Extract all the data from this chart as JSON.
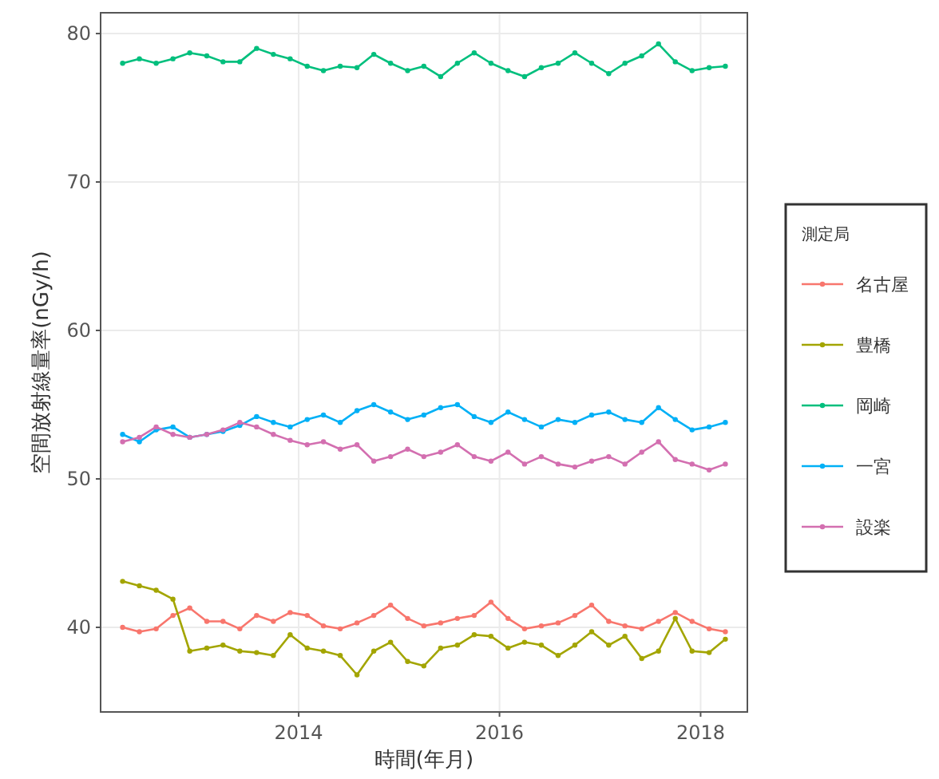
{
  "chart_data": {
    "type": "line",
    "xlabel": "時間(年月)",
    "ylabel": "空間放射線量率(nGy/h)",
    "legend_title": "測定局",
    "x": [
      "2012-04",
      "2012-06",
      "2012-08",
      "2012-10",
      "2012-12",
      "2013-02",
      "2013-04",
      "2013-06",
      "2013-08",
      "2013-10",
      "2013-12",
      "2014-02",
      "2014-04",
      "2014-06",
      "2014-08",
      "2014-10",
      "2014-12",
      "2015-02",
      "2015-04",
      "2015-06",
      "2015-08",
      "2015-10",
      "2015-12",
      "2016-02",
      "2016-04",
      "2016-06",
      "2016-08",
      "2016-10",
      "2016-12",
      "2017-02",
      "2017-04",
      "2017-06",
      "2017-08",
      "2017-10",
      "2017-12",
      "2018-02",
      "2018-04"
    ],
    "series": [
      {
        "name": "名古屋",
        "color": "#f8766d",
        "values": [
          40.0,
          39.7,
          39.9,
          40.8,
          41.3,
          40.4,
          40.4,
          39.9,
          40.8,
          40.4,
          41.0,
          40.8,
          40.1,
          39.9,
          40.3,
          40.8,
          41.5,
          40.6,
          40.1,
          40.3,
          40.6,
          40.8,
          41.7,
          40.6,
          39.9,
          40.1,
          40.3,
          40.8,
          41.5,
          40.4,
          40.1,
          39.9,
          40.4,
          41.0,
          40.4,
          39.9,
          39.7
        ]
      },
      {
        "name": "豊橋",
        "color": "#a3a500",
        "values": [
          43.1,
          42.8,
          42.5,
          41.9,
          38.4,
          38.6,
          38.8,
          38.4,
          38.3,
          38.1,
          39.5,
          38.6,
          38.4,
          38.1,
          36.8,
          38.4,
          39.0,
          37.7,
          37.4,
          38.6,
          38.8,
          39.5,
          39.4,
          38.6,
          39.0,
          38.8,
          38.1,
          38.8,
          39.7,
          38.8,
          39.4,
          37.9,
          38.4,
          40.6,
          38.4,
          38.3,
          39.2
        ]
      },
      {
        "name": "岡崎",
        "color": "#00bf7d",
        "values": [
          78.0,
          78.3,
          78.0,
          78.3,
          78.7,
          78.5,
          78.1,
          78.1,
          79.0,
          78.6,
          78.3,
          77.8,
          77.5,
          77.8,
          77.7,
          78.6,
          78.0,
          77.5,
          77.8,
          77.1,
          78.0,
          78.7,
          78.0,
          77.5,
          77.1,
          77.7,
          78.0,
          78.7,
          78.0,
          77.3,
          78.0,
          78.5,
          79.3,
          78.1,
          77.5,
          77.7,
          77.8
        ]
      },
      {
        "name": "一宮",
        "color": "#00b0f6",
        "values": [
          53.0,
          52.5,
          53.3,
          53.5,
          52.8,
          53.0,
          53.2,
          53.6,
          54.2,
          53.8,
          53.5,
          54.0,
          54.3,
          53.8,
          54.6,
          55.0,
          54.5,
          54.0,
          54.3,
          54.8,
          55.0,
          54.2,
          53.8,
          54.5,
          54.0,
          53.5,
          54.0,
          53.8,
          54.3,
          54.5,
          54.0,
          53.8,
          54.8,
          54.0,
          53.3,
          53.5,
          53.8
        ]
      },
      {
        "name": "設楽",
        "color": "#d36fb0",
        "values": [
          52.5,
          52.8,
          53.5,
          53.0,
          52.8,
          53.0,
          53.3,
          53.8,
          53.5,
          53.0,
          52.6,
          52.3,
          52.5,
          52.0,
          52.3,
          51.2,
          51.5,
          52.0,
          51.5,
          51.8,
          52.3,
          51.5,
          51.2,
          51.8,
          51.0,
          51.5,
          51.0,
          50.8,
          51.2,
          51.5,
          51.0,
          51.8,
          52.5,
          51.3,
          51.0,
          50.6,
          51.0
        ]
      }
    ],
    "xlim": [
      "2012-01-12",
      "2018-06-20"
    ],
    "xticks": [
      {
        "value": "2014",
        "label": "2014"
      },
      {
        "value": "2016",
        "label": "2016"
      },
      {
        "value": "2018",
        "label": "2018"
      }
    ],
    "ylim": [
      34.3,
      81.4
    ],
    "yticks": [
      40,
      50,
      60,
      70,
      80
    ],
    "grid": true,
    "legend": "right",
    "marker": "circle",
    "line_style": "solid"
  }
}
